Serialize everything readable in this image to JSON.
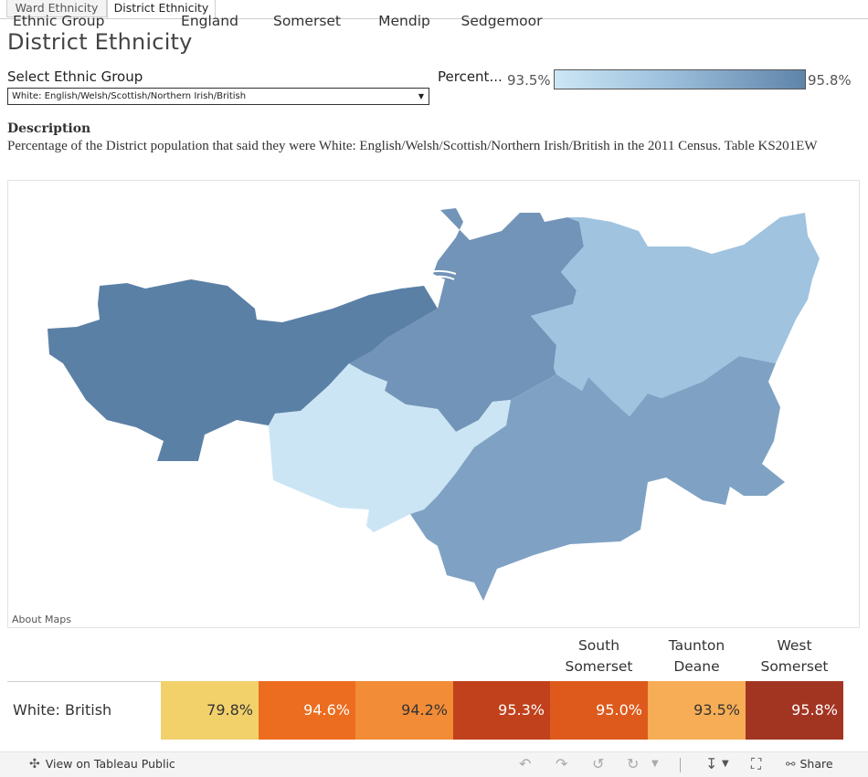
{
  "tabs": [
    {
      "label": "Ward Ethnicity",
      "active": false
    },
    {
      "label": "District Ethnicity",
      "active": true
    }
  ],
  "title": "District Ethnicity",
  "selector": {
    "label": "Select Ethnic Group",
    "value": "White: English/Welsh/Scottish/Northern Irish/British"
  },
  "legend": {
    "title": "Percent...",
    "min": "93.5%",
    "max": "95.8%"
  },
  "description": {
    "heading": "Description",
    "text": "Percentage of the District population that said they were White: English/Welsh/Scottish/Northern Irish/British in the 2011 Census. Table KS201EW"
  },
  "map": {
    "about": "About Maps",
    "regions": [
      {
        "name": "West Somerset",
        "value": "95.8%",
        "color": "#5b80a6"
      },
      {
        "name": "Sedgemoor",
        "value": "95.3%",
        "color": "#7294b8"
      },
      {
        "name": "Mendip",
        "value": "94.2%",
        "color": "#a0c3df"
      },
      {
        "name": "Taunton Deane",
        "value": "93.5%",
        "color": "#cbe5f4"
      },
      {
        "name": "South Somerset",
        "value": "95.0%",
        "color": "#7fa2c4"
      }
    ]
  },
  "table": {
    "row_header": "Ethnic Group",
    "columns": [
      {
        "name": "England",
        "value": "79.8%",
        "bg": "#f2d16b",
        "fg": "#333333"
      },
      {
        "name": "Somerset",
        "value": "94.6%",
        "bg": "#ec6d1f",
        "fg": "#ffffff"
      },
      {
        "name": "Mendip",
        "value": "94.2%",
        "bg": "#f28c36",
        "fg": "#333333"
      },
      {
        "name": "Sedgemoor",
        "value": "95.3%",
        "bg": "#c1411c",
        "fg": "#ffffff"
      },
      {
        "name": "South Somerset",
        "value": "95.0%",
        "bg": "#dd5a1c",
        "fg": "#ffffff"
      },
      {
        "name": "Taunton Deane",
        "value": "93.5%",
        "bg": "#f6ad55",
        "fg": "#333333"
      },
      {
        "name": "West Somerset",
        "value": "95.8%",
        "bg": "#a23522",
        "fg": "#ffffff"
      }
    ],
    "row_label": "White: British"
  },
  "footer": {
    "view_label": "View on Tableau Public",
    "share_label": "Share"
  }
}
